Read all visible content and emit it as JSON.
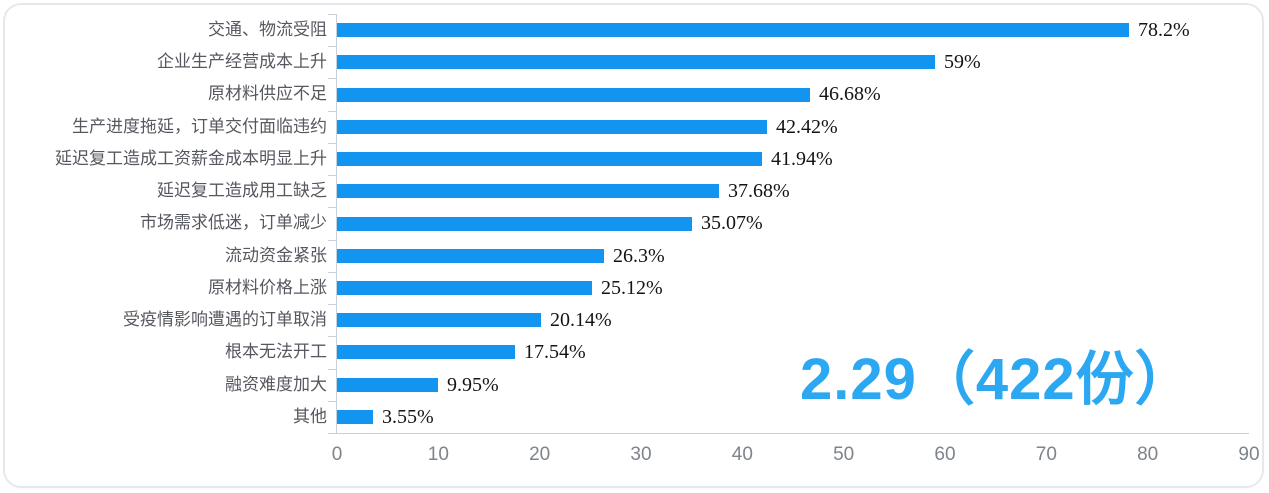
{
  "chart_data": {
    "type": "bar",
    "orientation": "horizontal",
    "title": "",
    "xlabel": "",
    "ylabel": "",
    "categories": [
      "交通、物流受阻",
      "企业生产经营成本上升",
      "原材料供应不足",
      "生产进度拖延，订单交付面临违约",
      "延迟复工造成工资薪金成本明显上升",
      "延迟复工造成用工缺乏",
      "市场需求低迷，订单减少",
      "流动资金紧张",
      "原材料价格上涨",
      "受疫情影响遭遇的订单取消",
      "根本无法开工",
      "融资难度加大",
      "其他"
    ],
    "values": [
      78.2,
      59,
      46.68,
      42.42,
      41.94,
      37.68,
      35.07,
      26.3,
      25.12,
      20.14,
      17.54,
      9.95,
      3.55
    ],
    "value_labels": [
      "78.2%",
      "59%",
      "46.68%",
      "42.42%",
      "41.94%",
      "37.68%",
      "35.07%",
      "26.3%",
      "25.12%",
      "20.14%",
      "17.54%",
      "9.95%",
      "3.55%"
    ],
    "xlim": [
      0,
      90
    ],
    "x_ticks": [
      "0",
      "10",
      "20",
      "30",
      "40",
      "50",
      "60",
      "70",
      "80",
      "90"
    ],
    "grid": false,
    "legend": "none"
  },
  "annotation": {
    "text": "2.29（422份）"
  },
  "colors": {
    "bar": "#1195F0",
    "annotation": "#2BA8F1",
    "category_label": "#55585F",
    "axis_line": "#C8D1DA",
    "tick_label": "#7E838C",
    "value_label": "#141414",
    "card_border": "#E6E8EC",
    "card_background": "#FFFFFF"
  }
}
